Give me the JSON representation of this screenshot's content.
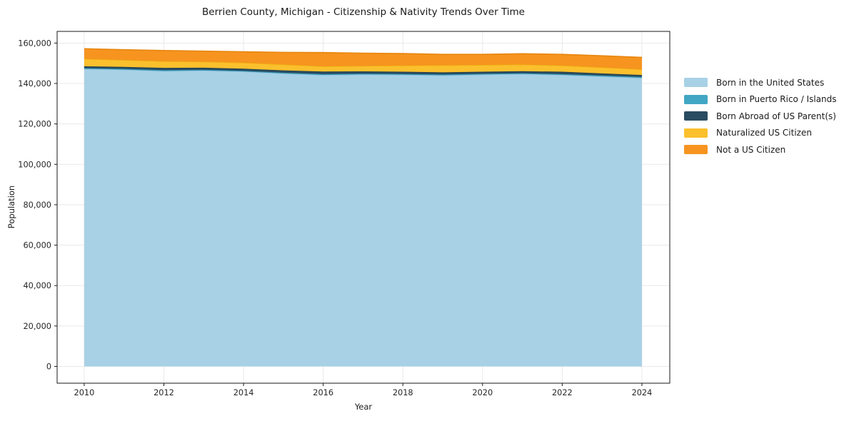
{
  "title": "Berrien County, Michigan - Citizenship & Nativity Trends Over Time",
  "chart_data": {
    "type": "area",
    "stacked": true,
    "title": "Berrien County, Michigan - Citizenship & Nativity Trends Over Time",
    "xlabel": "Year",
    "ylabel": "Population",
    "x": [
      2010,
      2011,
      2012,
      2013,
      2014,
      2015,
      2016,
      2017,
      2018,
      2019,
      2020,
      2021,
      2022,
      2023,
      2024
    ],
    "series": [
      {
        "name": "Born in the United States",
        "color": "#a8d1e6",
        "edge_color": "#8fc2dd",
        "values": [
          147200,
          146850,
          146150,
          146400,
          145900,
          144950,
          144200,
          144450,
          144300,
          144000,
          144400,
          144700,
          144250,
          143500,
          142750
        ]
      },
      {
        "name": "Born in Puerto Rico / Islands",
        "color": "#41a6c4",
        "edge_color": "#3793b1",
        "values": [
          400,
          400,
          450,
          400,
          350,
          400,
          450,
          400,
          400,
          450,
          400,
          350,
          400,
          450,
          500
        ]
      },
      {
        "name": "Born Abroad of US Parent(s)",
        "color": "#2a4c61",
        "edge_color": "#22404f",
        "values": [
          900,
          950,
          1100,
          1000,
          1050,
          1150,
          1250,
          1150,
          1100,
          1050,
          1000,
          1050,
          1150,
          1050,
          950
        ]
      },
      {
        "name": "Naturalized US Citizen",
        "color": "#fbc02d",
        "edge_color": "#eead14",
        "values": [
          3700,
          3400,
          3300,
          3000,
          3000,
          2900,
          2600,
          2700,
          3100,
          3500,
          3400,
          3300,
          3100,
          3000,
          2800
        ]
      },
      {
        "name": "Not a US Citizen",
        "color": "#f6941f",
        "edge_color": "#e8860f",
        "values": [
          5000,
          5100,
          5300,
          5200,
          5400,
          6000,
          6800,
          6300,
          5900,
          5400,
          5200,
          5300,
          5500,
          5700,
          5900
        ]
      }
    ],
    "totals": [
      157200,
      156700,
      156300,
      156000,
      155700,
      155400,
      155300,
      155000,
      154800,
      154400,
      154400,
      154700,
      154400,
      153700,
      152900
    ],
    "xticks": [
      2010,
      2012,
      2014,
      2016,
      2018,
      2020,
      2022,
      2024
    ],
    "yticks": [
      0,
      20000,
      40000,
      60000,
      80000,
      100000,
      120000,
      140000,
      160000
    ],
    "ytick_labels": [
      "0",
      "20,000",
      "40,000",
      "60,000",
      "80,000",
      "100,000",
      "120,000",
      "140,000",
      "160,000"
    ],
    "xlim": [
      2009.32,
      2024.7
    ],
    "ylim": [
      -8300,
      165770
    ],
    "grid": true,
    "grid_color": "#e9e9e9",
    "spine_color": "#1a1a1a",
    "tick_label_color": "#262626",
    "background_color": "#ffffff",
    "legend_position": "right-outside"
  }
}
